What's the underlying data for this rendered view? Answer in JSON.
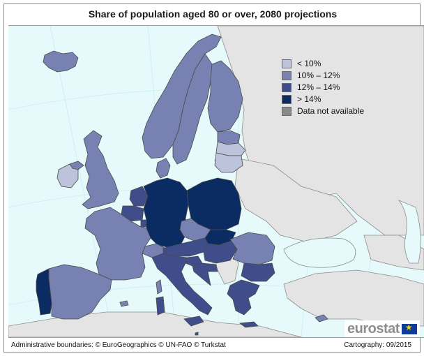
{
  "title": "Share of population aged 80 or over, 2080 projections",
  "legend": {
    "items": [
      {
        "label": "< 10%",
        "color": "#bcc3da"
      },
      {
        "label": "10% – 12%",
        "color": "#7782b3"
      },
      {
        "label": "12% – 14%",
        "color": "#3f4d8b"
      },
      {
        "label": "> 14%",
        "color": "#0b2b63"
      },
      {
        "label": "Data not available",
        "color": "#8a8a8a"
      }
    ]
  },
  "colors": {
    "sea": "#e6f9fb",
    "non_eu_land": "#e4e4e4",
    "borders": "#555555"
  },
  "footer": {
    "boundaries": "Administrative boundaries: © EuroGeographics © UN-FAO © Turkstat",
    "cartography": "Cartography: 09/2015"
  },
  "brand": {
    "name": "eurostat",
    "flag_icon": "eu-flag-icon"
  },
  "regions": [
    {
      "name": "Iceland",
      "class": "10% – 12%"
    },
    {
      "name": "Norway",
      "class": "10% – 12%"
    },
    {
      "name": "Sweden",
      "class": "10% – 12%"
    },
    {
      "name": "Finland",
      "class": "10% – 12%"
    },
    {
      "name": "Estonia",
      "class": "10% – 12%"
    },
    {
      "name": "Latvia",
      "class": "< 10%"
    },
    {
      "name": "Lithuania",
      "class": "< 10%"
    },
    {
      "name": "Ireland",
      "class": "< 10%"
    },
    {
      "name": "United Kingdom",
      "class": "10% – 12%"
    },
    {
      "name": "Denmark",
      "class": "10% – 12%"
    },
    {
      "name": "Netherlands",
      "class": "12% – 14%"
    },
    {
      "name": "Belgium",
      "class": "12% – 14%"
    },
    {
      "name": "Luxembourg",
      "class": "12% – 14%"
    },
    {
      "name": "Germany",
      "class": "> 14%"
    },
    {
      "name": "Poland",
      "class": "> 14%"
    },
    {
      "name": "Czech Republic",
      "class": "10% – 12%"
    },
    {
      "name": "Slovakia",
      "class": "> 14%"
    },
    {
      "name": "Austria",
      "class": "12% – 14%"
    },
    {
      "name": "Hungary",
      "class": "12% – 14%"
    },
    {
      "name": "Slovenia",
      "class": "12% – 14%"
    },
    {
      "name": "Croatia",
      "class": "12% – 14%"
    },
    {
      "name": "Romania",
      "class": "10% – 12%"
    },
    {
      "name": "Bulgaria",
      "class": "12% – 14%"
    },
    {
      "name": "Greece",
      "class": "12% – 14%"
    },
    {
      "name": "Cyprus",
      "class": "10% – 12%"
    },
    {
      "name": "Malta",
      "class": "12% – 14%"
    },
    {
      "name": "Italy",
      "class": "12% – 14%"
    },
    {
      "name": "France",
      "class": "10% – 12%"
    },
    {
      "name": "Spain",
      "class": "10% – 12%"
    },
    {
      "name": "Portugal",
      "class": "> 14%"
    },
    {
      "name": "Switzerland",
      "class": "10% – 12%"
    },
    {
      "name": "Liechtenstein",
      "class": "12% – 14%"
    }
  ]
}
